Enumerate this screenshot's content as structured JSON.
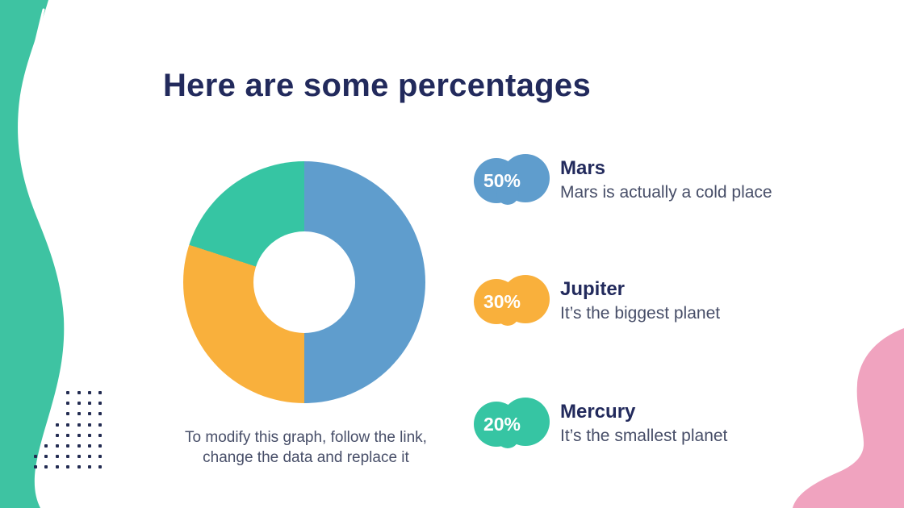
{
  "slide": {
    "title": "Here are some percentages",
    "caption": "To modify this graph, follow the link,\nchange the data and replace it"
  },
  "chart_data": {
    "type": "pie",
    "subtype": "donut",
    "title": "Here are some percentages",
    "categories": [
      "Mars",
      "Jupiter",
      "Mercury"
    ],
    "values": [
      50,
      30,
      20
    ],
    "unit": "%",
    "colors": [
      "#5F9DCD",
      "#F9B03C",
      "#36C5A3"
    ],
    "start_angle_deg": 0,
    "direction": "clockwise",
    "hole_ratio": 0.42,
    "legend_position": "right",
    "annotations": [
      "50% Mars — Mars is actually a cold place",
      "30% Jupiter — It’s the biggest planet",
      "20% Mercury — It’s the smallest planet"
    ]
  },
  "legend": {
    "items": [
      {
        "value": "50%",
        "name": "Mars",
        "description": "Mars is actually a cold place",
        "color": "#5F9DCD"
      },
      {
        "value": "30%",
        "name": "Jupiter",
        "description": "It’s the biggest planet",
        "color": "#F9B03C"
      },
      {
        "value": "20%",
        "name": "Mercury",
        "description": "It’s the smallest planet",
        "color": "#36C5A3"
      }
    ]
  },
  "decor": {
    "left_blob_color": "#3EC3A2",
    "pink_blob_color": "#F0A3BF",
    "dots_color": "#232C52",
    "dots_rows": 8,
    "dots_cols": 7,
    "dots_row_skips": [
      3,
      3,
      3,
      2,
      2,
      1,
      0,
      0
    ]
  },
  "text_colors": {
    "title": "#222A5C",
    "body": "#474E68"
  }
}
